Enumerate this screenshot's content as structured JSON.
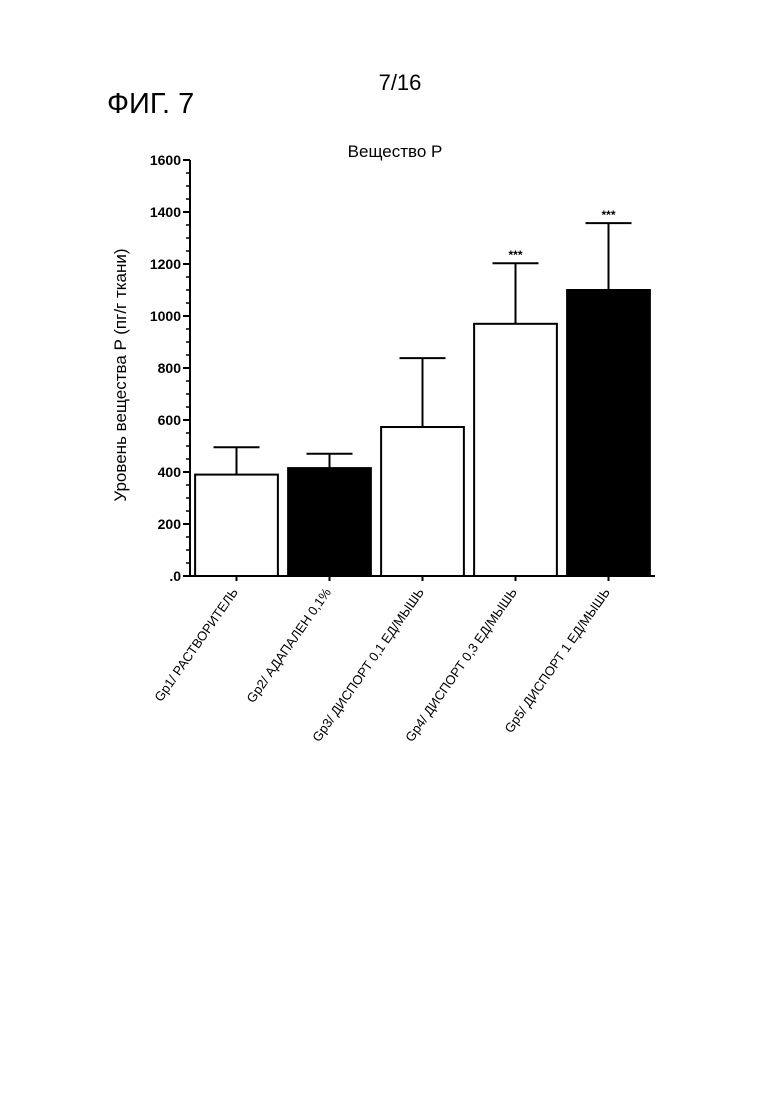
{
  "page": {
    "page_number": "7/16",
    "figure_label": "ФИГ. 7"
  },
  "chart_data": {
    "type": "bar",
    "title": "Вещество P",
    "xlabel": "",
    "ylabel": "Уровень вещества P (пг/г ткани)",
    "ylim": [
      0,
      1600
    ],
    "yticks": [
      0,
      200,
      400,
      600,
      800,
      1000,
      1200,
      1400,
      1600
    ],
    "ytick_labels": [
      ".0",
      "200",
      "400",
      "600",
      "800",
      "1000",
      "1200",
      "1400",
      "1600"
    ],
    "categories": [
      "Gp1/ РАСТВОРИТЕЛЬ",
      "Gp2/ АДАПАЛЕН 0,1%",
      "Gp3/ ДИСПОРТ 0,1 ЕД/МЫШЬ",
      "Gp4/ ДИСПОРТ 0,3 ЕД/МЫШЬ",
      "Gp5/ ДИСПОРТ 1 ЕД/МЫШЬ"
    ],
    "values": [
      390,
      415,
      573,
      970,
      1100
    ],
    "error_upper": [
      495,
      470,
      838,
      1203,
      1357
    ],
    "significance": [
      "",
      "",
      "",
      "***",
      "***"
    ],
    "bar_fill": [
      "#ffffff",
      "#000000",
      "#ffffff",
      "#ffffff",
      "#000000"
    ],
    "grid": false,
    "legend": "none"
  }
}
